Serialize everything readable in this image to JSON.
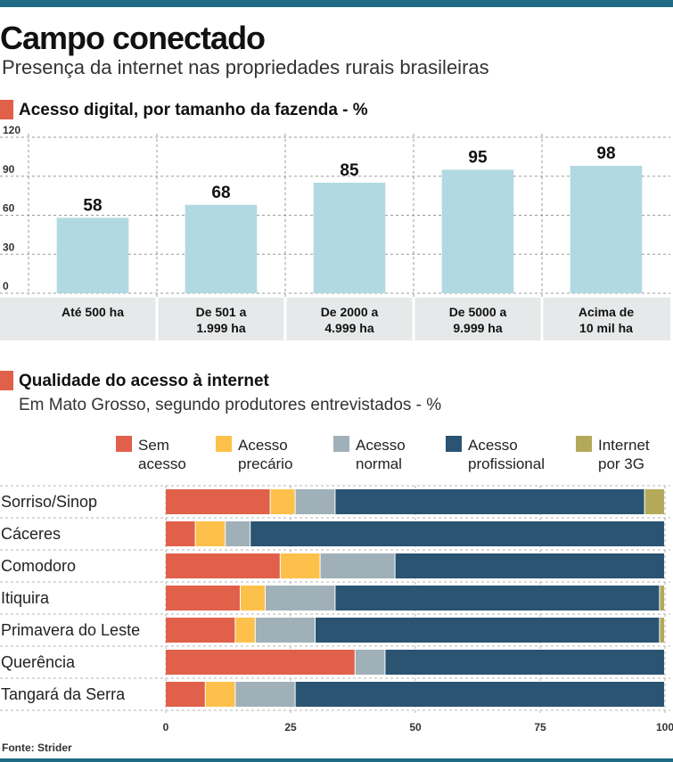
{
  "header": {
    "title": "Campo conectado",
    "subtitle": "Presença da internet nas propriedades rurais brasileiras"
  },
  "source": "Fonte: Strider",
  "chart_data": [
    {
      "type": "bar",
      "title": "Acesso digital, por tamanho da fazenda - %",
      "categories": [
        [
          "Até 500 ha"
        ],
        [
          "De 501 a",
          "1.999 ha"
        ],
        [
          "De 2000 a",
          "4.999 ha"
        ],
        [
          "De 5000 a",
          "9.999 ha"
        ],
        [
          "Acima de",
          "10 mil ha"
        ]
      ],
      "values": [
        58,
        68,
        85,
        95,
        98
      ],
      "ylim": [
        0,
        120
      ],
      "yticks": [
        0,
        30,
        60,
        90,
        120
      ],
      "grid": true,
      "colors": {
        "bar": "#b1d9e2",
        "band": "#e6e8e9",
        "grid": "#9a9a9a"
      }
    },
    {
      "type": "bar",
      "orientation": "horizontal",
      "stacked": true,
      "title": "Qualidade do acesso à internet",
      "subtitle": "Em Mato Grosso, segundo produtores entrevistados - %",
      "categories": [
        "Sorriso/Sinop",
        "Cáceres",
        "Comodoro",
        "Itiquira",
        "Primavera do Leste",
        "Querência",
        "Tangará da Serra"
      ],
      "series": [
        {
          "name": [
            "Sem",
            "acesso"
          ],
          "color": "#e0604a",
          "values": [
            21,
            6,
            23,
            15,
            14,
            38,
            8
          ]
        },
        {
          "name": [
            "Acesso",
            "precário"
          ],
          "color": "#fdc04a",
          "values": [
            5,
            6,
            8,
            5,
            4,
            0,
            6
          ]
        },
        {
          "name": [
            "Acesso",
            "normal"
          ],
          "color": "#9fb0b8",
          "values": [
            8,
            5,
            15,
            14,
            12,
            6,
            12
          ]
        },
        {
          "name": [
            "Acesso",
            "profissional"
          ],
          "color": "#2a5472",
          "values": [
            62,
            83,
            54,
            65,
            69,
            56,
            74
          ]
        },
        {
          "name": [
            "Internet",
            "por 3G"
          ],
          "color": "#b4a95a",
          "values": [
            4,
            0,
            0,
            1,
            1,
            0,
            0
          ]
        }
      ],
      "xlim": [
        0,
        100
      ],
      "xticks": [
        0,
        25,
        50,
        75,
        100
      ],
      "legend_position": "top",
      "grid": true
    }
  ]
}
